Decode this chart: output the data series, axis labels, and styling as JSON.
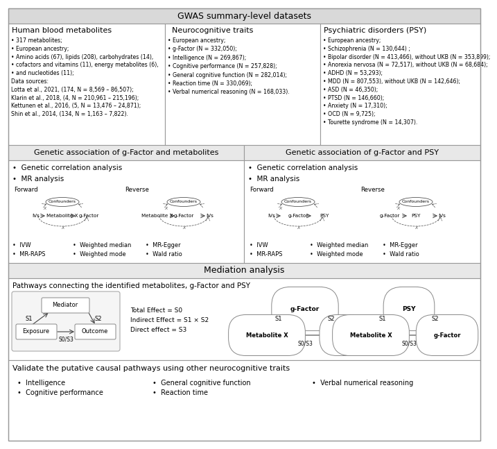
{
  "title_gwas": "GWAS summary-level datasets",
  "title_genetic_met": "Genetic association of g-Factor and metabolites",
  "title_genetic_psy": "Genetic association of g-Factor and PSY",
  "title_mediation": "Mediation analysis",
  "title_validate": "Validate the putative causal pathways using other neurocognitive traits",
  "col1_header": "Human blood metabolites",
  "col2_header": "Neurocognitive traits",
  "col3_header": "Psychiatric disorders (PSY)",
  "col1_bullets": [
    "317 metabolites;",
    "European ancestry;",
    "Amino acids (67), lipids (208), carbohydrates (14),",
    "cofactors and vitamins (11), energy metabolites (6),",
    "and nucleotides (11);",
    "Data sources:",
    "Lotta et al., 2021, (174, N = 8,569 – 86,507);",
    "Klarin et al., 2018, (4, N = 210,961 – 215,196);",
    "Kettunen et al., 2016, (5, N = 13,476 – 24,871);",
    "Shin et al., 2014, (134, N = 1,163 – 7,822)."
  ],
  "col2_bullets": [
    "European ancestry;",
    "g-Factor (N = 332,050);",
    "Intelligence (N = 269,867);",
    "Cognitive performance (N = 257,828);",
    "General cognitive function (N = 282,014);",
    "Reaction time (N = 330,069);",
    "Verbal numerical reasoning (N = 168,033)."
  ],
  "col3_bullets": [
    "European ancestry;",
    "Schizophrenia (N = 130,644) ;",
    "Bipolar disorder (N = 413,466), without UKB (N = 353,899);",
    "Anorexia nervosa (N = 72,517), without UKB (N = 68,684);",
    "ADHD (N = 53,293);",
    "MDD (N = 807,553), without UKB (N = 142,646);",
    "ASD (N = 46,350);",
    "PTSD (N = 146,660);",
    "Anxiety (N = 17,310);",
    "OCD (N = 9,725);",
    "Tourette syndrome (N = 14,307)."
  ],
  "validate_bullets_col1": [
    "Intelligence",
    "Cognitive performance"
  ],
  "validate_bullets_col2": [
    "General cognitive function",
    "Reaction time"
  ],
  "validate_bullets_col3": [
    "Verbal numerical reasoning"
  ],
  "bg_header": "#d9d9d9",
  "bg_section": "#e8e8e8",
  "bg_white": "#ffffff",
  "border_color": "#999999"
}
